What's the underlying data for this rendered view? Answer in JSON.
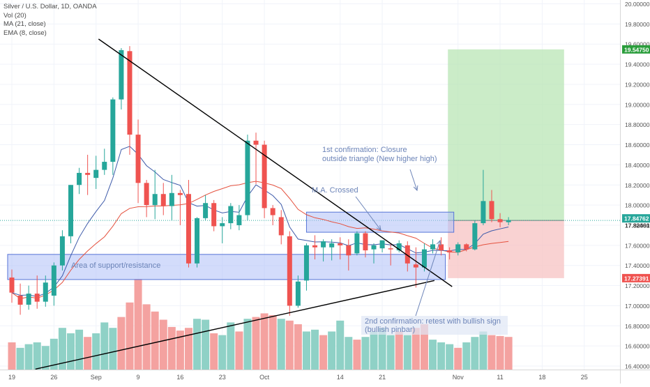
{
  "header": {
    "symbol": "Silver / U.S. Dollar, 1D, OANDA",
    "indicators": [
      "Vol (20)",
      "MA (21, close)",
      "EMA (8, close)"
    ]
  },
  "colors": {
    "up": "#26a69a",
    "down": "#ef5350",
    "vol_up": "#8fd1c6",
    "vol_down": "#f4a2a0",
    "ma21": "#e5523f",
    "ema8": "#3d5aa9",
    "zone_fill": "#aebff7",
    "zone_stroke": "#5774d6",
    "target": "#b9e5b5",
    "stop": "#f7c3c3",
    "price_current": "#26a69a",
    "price_target": "#2a9d3b",
    "price_stop": "#ef5350",
    "annotation": "#6c84b8",
    "trendline": "#000000"
  },
  "chart_data": {
    "type": "candlestick",
    "timeframe": "1D",
    "y_axis": {
      "min": 16.4,
      "max": 20.0,
      "ticks": [
        "20.00000",
        "19.80000",
        "19.60000",
        "19.40000",
        "19.20000",
        "19.00000",
        "18.80000",
        "18.60000",
        "18.40000",
        "18.20000",
        "18.00000",
        "17.80000",
        "17.60000",
        "17.40000",
        "17.20000",
        "17.00000",
        "16.80000",
        "16.60000",
        "16.40000"
      ]
    },
    "x_axis": {
      "labels": [
        {
          "t": "19",
          "i": 0
        },
        {
          "t": "26",
          "i": 5
        },
        {
          "t": "Sep",
          "i": 10
        },
        {
          "t": "9",
          "i": 15
        },
        {
          "t": "16",
          "i": 20
        },
        {
          "t": "23",
          "i": 25
        },
        {
          "t": "Oct",
          "i": 30
        },
        {
          "t": "14",
          "i": 39
        },
        {
          "t": "21",
          "i": 44
        },
        {
          "t": "Nov",
          "i": 53
        },
        {
          "t": "11",
          "i": 58
        },
        {
          "t": "18",
          "i": 63
        },
        {
          "t": "25",
          "i": 68
        }
      ]
    },
    "candles": [
      {
        "o": 17.28,
        "h": 17.36,
        "l": 17.03,
        "c": 17.13
      },
      {
        "o": 17.1,
        "h": 17.22,
        "l": 16.91,
        "c": 17.01
      },
      {
        "o": 17.01,
        "h": 17.2,
        "l": 16.96,
        "c": 17.12
      },
      {
        "o": 17.12,
        "h": 17.3,
        "l": 16.97,
        "c": 17.04
      },
      {
        "o": 17.04,
        "h": 17.3,
        "l": 16.99,
        "c": 17.23
      },
      {
        "o": 17.1,
        "h": 17.43,
        "l": 17.0,
        "c": 17.4
      },
      {
        "o": 17.4,
        "h": 17.75,
        "l": 17.35,
        "c": 17.69
      },
      {
        "o": 17.69,
        "h": 18.2,
        "l": 17.62,
        "c": 18.2
      },
      {
        "o": 18.2,
        "h": 18.37,
        "l": 18.11,
        "c": 18.32
      },
      {
        "o": 18.32,
        "h": 18.5,
        "l": 18.1,
        "c": 18.3
      },
      {
        "o": 18.27,
        "h": 18.49,
        "l": 18.16,
        "c": 18.35
      },
      {
        "o": 18.35,
        "h": 18.56,
        "l": 18.3,
        "c": 18.43
      },
      {
        "o": 18.43,
        "h": 19.07,
        "l": 18.3,
        "c": 19.05
      },
      {
        "o": 19.05,
        "h": 19.56,
        "l": 18.95,
        "c": 19.54
      },
      {
        "o": 19.53,
        "h": 19.58,
        "l": 18.5,
        "c": 18.7
      },
      {
        "o": 18.7,
        "h": 18.85,
        "l": 18.02,
        "c": 18.22
      },
      {
        "o": 18.22,
        "h": 18.25,
        "l": 17.88,
        "c": 18.0
      },
      {
        "o": 18.0,
        "h": 18.35,
        "l": 17.86,
        "c": 18.11
      },
      {
        "o": 18.11,
        "h": 18.22,
        "l": 17.9,
        "c": 17.99
      },
      {
        "o": 17.99,
        "h": 18.3,
        "l": 17.85,
        "c": 18.12
      },
      {
        "o": 18.12,
        "h": 18.15,
        "l": 17.8,
        "c": 18.1
      },
      {
        "o": 18.11,
        "h": 18.25,
        "l": 17.38,
        "c": 17.42
      },
      {
        "o": 17.42,
        "h": 17.88,
        "l": 17.38,
        "c": 17.87
      },
      {
        "o": 17.87,
        "h": 18.1,
        "l": 17.85,
        "c": 18.02
      },
      {
        "o": 18.02,
        "h": 18.05,
        "l": 17.74,
        "c": 17.79
      },
      {
        "o": 17.79,
        "h": 17.88,
        "l": 17.62,
        "c": 17.82
      },
      {
        "o": 17.82,
        "h": 18.02,
        "l": 17.76,
        "c": 17.99
      },
      {
        "o": 17.8,
        "h": 18.0,
        "l": 17.75,
        "c": 17.9
      },
      {
        "o": 17.9,
        "h": 18.7,
        "l": 17.85,
        "c": 18.64
      },
      {
        "o": 18.64,
        "h": 18.72,
        "l": 18.21,
        "c": 18.6
      },
      {
        "o": 18.6,
        "h": 18.64,
        "l": 17.87,
        "c": 17.97
      },
      {
        "o": 17.97,
        "h": 18.0,
        "l": 17.8,
        "c": 17.9
      },
      {
        "o": 17.88,
        "h": 17.95,
        "l": 17.61,
        "c": 17.7
      },
      {
        "o": 17.69,
        "h": 17.74,
        "l": 16.9,
        "c": 17.0
      },
      {
        "o": 17.0,
        "h": 17.3,
        "l": 16.98,
        "c": 17.24
      },
      {
        "o": 17.25,
        "h": 17.62,
        "l": 17.15,
        "c": 17.6
      },
      {
        "o": 17.6,
        "h": 17.7,
        "l": 17.46,
        "c": 17.58
      },
      {
        "o": 17.58,
        "h": 17.66,
        "l": 17.44,
        "c": 17.64
      },
      {
        "o": 17.58,
        "h": 17.66,
        "l": 17.45,
        "c": 17.62
      },
      {
        "o": 17.62,
        "h": 17.68,
        "l": 17.46,
        "c": 17.6
      },
      {
        "o": 17.6,
        "h": 17.66,
        "l": 17.35,
        "c": 17.5
      },
      {
        "o": 17.52,
        "h": 17.74,
        "l": 17.5,
        "c": 17.72
      },
      {
        "o": 17.72,
        "h": 17.74,
        "l": 17.48,
        "c": 17.55
      },
      {
        "o": 17.56,
        "h": 17.62,
        "l": 17.42,
        "c": 17.6
      },
      {
        "o": 17.57,
        "h": 17.64,
        "l": 17.53,
        "c": 17.65
      },
      {
        "o": 17.57,
        "h": 17.62,
        "l": 17.4,
        "c": 17.56
      },
      {
        "o": 17.55,
        "h": 17.65,
        "l": 17.53,
        "c": 17.62
      },
      {
        "o": 17.6,
        "h": 17.64,
        "l": 17.34,
        "c": 17.42
      },
      {
        "o": 17.41,
        "h": 17.58,
        "l": 17.18,
        "c": 17.38
      },
      {
        "o": 17.38,
        "h": 17.62,
        "l": 17.34,
        "c": 17.56
      },
      {
        "o": 17.56,
        "h": 17.66,
        "l": 17.52,
        "c": 17.61
      },
      {
        "o": 17.61,
        "h": 17.68,
        "l": 17.5,
        "c": 17.55
      },
      {
        "o": 17.55,
        "h": 17.58,
        "l": 17.46,
        "c": 17.53
      },
      {
        "o": 17.53,
        "h": 17.63,
        "l": 17.5,
        "c": 17.61
      },
      {
        "o": 17.61,
        "h": 17.62,
        "l": 17.54,
        "c": 17.56
      },
      {
        "o": 17.56,
        "h": 17.85,
        "l": 17.55,
        "c": 17.82
      },
      {
        "o": 17.82,
        "h": 18.35,
        "l": 17.8,
        "c": 18.04
      },
      {
        "o": 18.04,
        "h": 18.15,
        "l": 17.83,
        "c": 17.86
      },
      {
        "o": 17.86,
        "h": 17.92,
        "l": 17.78,
        "c": 17.83
      },
      {
        "o": 17.83,
        "h": 17.88,
        "l": 17.8,
        "c": 17.85
      }
    ],
    "volume": [
      {
        "v": 0.3,
        "up": false
      },
      {
        "v": 0.24,
        "up": true
      },
      {
        "v": 0.28,
        "up": true
      },
      {
        "v": 0.3,
        "up": true
      },
      {
        "v": 0.26,
        "up": true
      },
      {
        "v": 0.34,
        "up": true
      },
      {
        "v": 0.46,
        "up": true
      },
      {
        "v": 0.4,
        "up": true
      },
      {
        "v": 0.44,
        "up": true
      },
      {
        "v": 0.36,
        "up": false
      },
      {
        "v": 0.4,
        "up": true
      },
      {
        "v": 0.52,
        "up": true
      },
      {
        "v": 0.46,
        "up": true
      },
      {
        "v": 0.58,
        "up": false
      },
      {
        "v": 0.74,
        "up": false
      },
      {
        "v": 1.0,
        "up": false
      },
      {
        "v": 0.72,
        "up": false
      },
      {
        "v": 0.64,
        "up": false
      },
      {
        "v": 0.55,
        "up": false
      },
      {
        "v": 0.47,
        "up": false
      },
      {
        "v": 0.43,
        "up": false
      },
      {
        "v": 0.46,
        "up": false
      },
      {
        "v": 0.56,
        "up": true
      },
      {
        "v": 0.55,
        "up": true
      },
      {
        "v": 0.4,
        "up": false
      },
      {
        "v": 0.38,
        "up": true
      },
      {
        "v": 0.52,
        "up": true
      },
      {
        "v": 0.42,
        "up": false
      },
      {
        "v": 0.56,
        "up": true
      },
      {
        "v": 0.58,
        "up": false
      },
      {
        "v": 0.62,
        "up": false
      },
      {
        "v": 0.6,
        "up": false
      },
      {
        "v": 0.56,
        "up": true
      },
      {
        "v": 0.54,
        "up": false
      },
      {
        "v": 0.5,
        "up": false
      },
      {
        "v": 0.42,
        "up": true
      },
      {
        "v": 0.44,
        "up": true
      },
      {
        "v": 0.38,
        "up": false
      },
      {
        "v": 0.42,
        "up": true
      },
      {
        "v": 0.54,
        "up": true
      },
      {
        "v": 0.36,
        "up": true
      },
      {
        "v": 0.33,
        "up": false
      },
      {
        "v": 0.36,
        "up": true
      },
      {
        "v": 0.42,
        "up": true
      },
      {
        "v": 0.46,
        "up": true
      },
      {
        "v": 0.38,
        "up": true
      },
      {
        "v": 0.42,
        "up": false
      },
      {
        "v": 0.38,
        "up": true
      },
      {
        "v": 0.46,
        "up": false
      },
      {
        "v": 0.5,
        "up": false
      },
      {
        "v": 0.33,
        "up": true
      },
      {
        "v": 0.3,
        "up": true
      },
      {
        "v": 0.28,
        "up": true
      },
      {
        "v": 0.24,
        "up": false
      },
      {
        "v": 0.3,
        "up": true
      },
      {
        "v": 0.36,
        "up": true
      },
      {
        "v": 0.42,
        "up": true
      },
      {
        "v": 0.38,
        "up": false
      },
      {
        "v": 0.37,
        "up": false
      },
      {
        "v": 0.36,
        "up": false
      }
    ],
    "trendlines": [
      {
        "name": "descending",
        "from": {
          "i": 10.3,
          "p": 19.65
        },
        "to": {
          "i": 52.3,
          "p": 17.19
        }
      },
      {
        "name": "ascending",
        "from": {
          "i": 2.8,
          "p": 16.37
        },
        "to": {
          "i": 50.2,
          "p": 17.25
        }
      }
    ],
    "zones": [
      {
        "name": "support-resistance",
        "i1": -0.5,
        "i2": 51.5,
        "p1": 17.51,
        "p2": 17.26
      },
      {
        "name": "breakout-box",
        "i1": 35.0,
        "i2": 52.5,
        "p1": 17.93,
        "p2": 17.73
      }
    ],
    "position": {
      "i1": 51.8,
      "i2": 65.6,
      "entry": 17.84762,
      "target": 19.5475,
      "stop": 17.27391
    },
    "price_labels": {
      "target": "19.54750",
      "current": "17.84762",
      "stop": "17.27391",
      "last": "17.82461"
    },
    "annotations": {
      "support_zone_label": "Area of support/resistance",
      "ma_crossed": "M.A. Crossed",
      "first_confirmation_line1": "1st confirmation: Closure",
      "first_confirmation_line2": "outside triangle (New higher high)",
      "second_confirmation_line1": "2nd confirmation: retest with bullish sign",
      "second_confirmation_line2": "(bullish pinbar)"
    }
  }
}
